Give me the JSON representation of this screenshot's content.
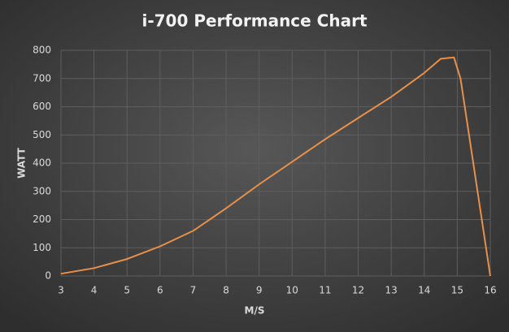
{
  "chart_data": {
    "type": "line",
    "title": "i-700 Performance Chart",
    "x_label": "M/S",
    "y_label": "WATT",
    "series": [
      {
        "name": "i-700",
        "color": "#e6904b",
        "x": [
          3,
          4,
          5,
          6,
          7,
          8,
          9,
          10,
          11,
          12,
          13,
          14,
          14.5,
          14.9,
          15.1,
          16
        ],
        "values": [
          8,
          28,
          60,
          105,
          160,
          240,
          325,
          405,
          485,
          560,
          635,
          720,
          770,
          775,
          700,
          0
        ]
      }
    ],
    "xlim": [
      3,
      16
    ],
    "xticks": [
      3,
      4,
      5,
      6,
      7,
      8,
      9,
      10,
      11,
      12,
      13,
      14,
      15,
      16
    ],
    "ylim": [
      0,
      800
    ],
    "yticks": [
      0,
      100,
      200,
      300,
      400,
      500,
      600,
      700,
      800
    ],
    "grid": true
  }
}
